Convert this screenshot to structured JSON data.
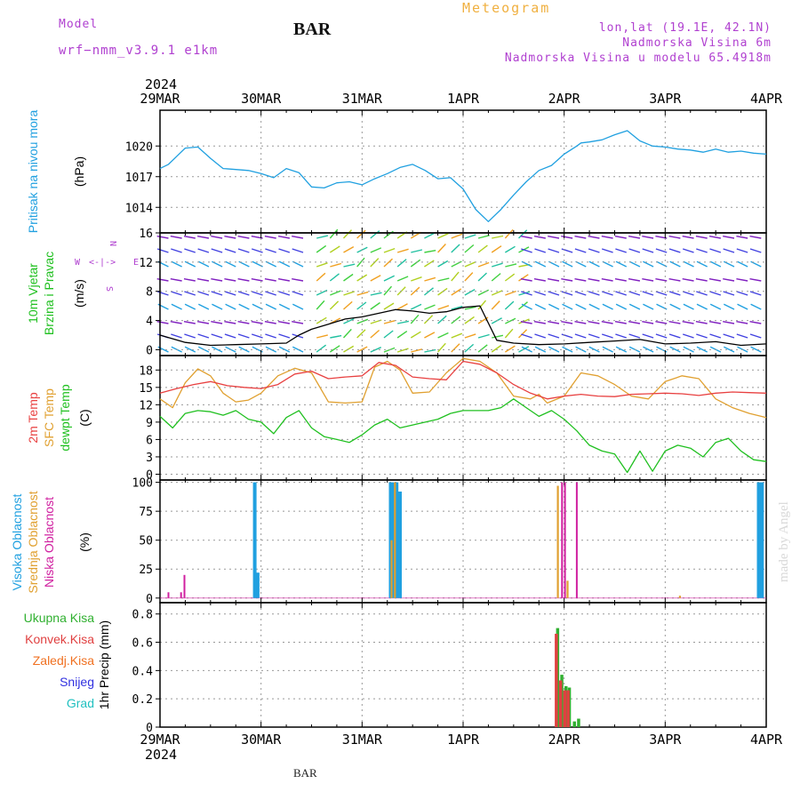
{
  "header": {
    "model_label": "Model",
    "model_name": "wrf−nmm_v3.9.1  e1km",
    "station": "BAR",
    "meteogram": "Meteogram",
    "lonlat": "lon,lat (19.1E, 42.1N)",
    "elevation": "Nadmorska Visina 6m",
    "model_elevation": "Nadmorska Visina u modelu 65.4918m"
  },
  "footer": {
    "station": "BAR",
    "credit": "made by Angel"
  },
  "colors": {
    "pressure": "#20a0e0",
    "temp2m": "#e84040",
    "sfc": "#e0a030",
    "dew": "#20c020",
    "high_cloud": "#20a0e0",
    "mid_cloud": "#e0a030",
    "low_cloud": "#d020a0",
    "total_precip": "#30b030",
    "conv_precip": "#e04040",
    "frozen_precip": "#f07020",
    "snow": "#3030e0",
    "hail": "#20c0c0",
    "grid": "#999999"
  },
  "chart_data": [
    {
      "type": "line",
      "panel": "pressure",
      "ylabel": [
        "Pritisak na nivou mora",
        "(hPa)"
      ],
      "ylim": [
        1011.5,
        1023.5
      ],
      "yticks": [
        1014,
        1017,
        1020
      ],
      "xlim": [
        0,
        144
      ],
      "xticks": [
        "29MAR",
        "30MAR",
        "31MAR",
        "1APR",
        "2APR",
        "3APR",
        "4APR"
      ],
      "year": "2024",
      "grid": true,
      "series": [
        {
          "x": [
            0,
            2,
            4,
            6,
            9,
            12,
            15,
            18,
            21,
            24,
            27,
            30,
            33,
            36,
            39,
            42,
            45,
            48,
            51,
            54,
            57,
            60,
            63,
            66,
            69,
            72,
            75,
            78,
            81,
            84,
            87,
            90,
            93,
            96,
            99,
            100,
            102,
            105,
            108,
            111,
            114,
            117,
            120,
            123,
            126,
            129,
            132,
            135,
            138,
            141,
            144
          ],
          "values": [
            1017.8,
            1018.2,
            1019.0,
            1019.8,
            1019.9,
            1018.8,
            1017.8,
            1017.7,
            1017.6,
            1017.3,
            1016.9,
            1017.8,
            1017.4,
            1016.0,
            1015.9,
            1016.4,
            1016.5,
            1016.2,
            1016.8,
            1017.3,
            1017.9,
            1018.2,
            1017.6,
            1016.8,
            1016.9,
            1015.8,
            1013.8,
            1012.6,
            1013.8,
            1015.2,
            1016.5,
            1017.6,
            1018.1,
            1019.2,
            1020.0,
            1020.3,
            1020.4,
            1020.6,
            1021.1,
            1021.5,
            1020.5,
            1020.0,
            1019.9,
            1019.7,
            1019.6,
            1019.4,
            1019.7,
            1019.4,
            1019.5,
            1019.3,
            1019.2
          ]
        }
      ]
    },
    {
      "type": "line",
      "panel": "wind",
      "ylabel": [
        "10m Vjetar",
        "Brzina i Pravac",
        "(m/s)"
      ],
      "compass": [
        "N",
        "E",
        "S",
        "W"
      ],
      "ylim": [
        -0.8,
        16
      ],
      "yticks": [
        0,
        4,
        8,
        12,
        16
      ],
      "xlim": [
        0,
        144
      ],
      "grid": true,
      "series": [
        {
          "name": "speed",
          "x": [
            0,
            6,
            12,
            18,
            24,
            30,
            33,
            36,
            40,
            44,
            48,
            52,
            56,
            60,
            64,
            68,
            72,
            76,
            80,
            84,
            90,
            96,
            102,
            108,
            114,
            120,
            126,
            132,
            138,
            144
          ],
          "values": [
            2.0,
            1.0,
            0.6,
            0.7,
            0.8,
            0.9,
            2.0,
            2.8,
            3.5,
            4.2,
            4.5,
            5.0,
            5.5,
            5.3,
            5.0,
            5.2,
            5.8,
            6.0,
            1.3,
            0.9,
            0.7,
            0.8,
            1.0,
            1.2,
            1.4,
            0.8,
            0.9,
            1.1,
            0.6,
            0.8
          ]
        }
      ]
    },
    {
      "type": "line",
      "panel": "temperature",
      "ylabel": [
        "2m Temp",
        "SFC Temp",
        "dewpt Temp",
        "(C)"
      ],
      "ylim": [
        -1,
        20.5
      ],
      "yticks": [
        0,
        3,
        6,
        9,
        12,
        15,
        18
      ],
      "xlim": [
        0,
        144
      ],
      "grid": true,
      "series": [
        {
          "name": "2m Temp",
          "x": [
            0,
            4,
            8,
            12,
            16,
            20,
            24,
            28,
            32,
            36,
            40,
            44,
            48,
            52,
            56,
            60,
            64,
            68,
            72,
            76,
            80,
            84,
            88,
            92,
            96,
            100,
            104,
            108,
            112,
            116,
            120,
            124,
            128,
            132,
            136,
            140,
            144
          ],
          "values": [
            14.0,
            14.8,
            15.5,
            16.0,
            15.3,
            15.0,
            14.8,
            15.5,
            17.3,
            17.8,
            16.5,
            16.8,
            17.0,
            19.3,
            18.8,
            16.8,
            16.5,
            16.3,
            19.5,
            19.0,
            17.5,
            15.5,
            14.0,
            13.0,
            13.5,
            13.8,
            13.5,
            13.4,
            13.8,
            13.9,
            14.0,
            13.9,
            13.6,
            14.0,
            14.2,
            14.1,
            14.0
          ]
        },
        {
          "name": "SFC Temp",
          "x": [
            0,
            3,
            6,
            9,
            12,
            15,
            18,
            21,
            24,
            28,
            32,
            36,
            40,
            44,
            48,
            51,
            54,
            57,
            60,
            64,
            68,
            72,
            76,
            80,
            84,
            88,
            90,
            92,
            96,
            100,
            104,
            108,
            112,
            116,
            120,
            124,
            128,
            132,
            136,
            140,
            144
          ],
          "values": [
            13.0,
            11.5,
            15.8,
            18.2,
            17.0,
            14.0,
            12.5,
            12.8,
            14.0,
            17.0,
            18.3,
            17.5,
            12.5,
            12.3,
            12.5,
            18.5,
            19.5,
            18.0,
            14.0,
            14.2,
            17.5,
            20.0,
            19.5,
            17.5,
            13.5,
            13.0,
            13.8,
            12.3,
            13.5,
            17.5,
            17.0,
            15.5,
            13.5,
            13.0,
            16.0,
            17.0,
            16.5,
            13.0,
            11.5,
            10.5,
            9.8
          ]
        },
        {
          "name": "dewpt Temp",
          "x": [
            0,
            3,
            6,
            9,
            12,
            15,
            18,
            21,
            24,
            27,
            30,
            33,
            36,
            39,
            42,
            45,
            48,
            51,
            54,
            57,
            60,
            63,
            66,
            69,
            72,
            75,
            78,
            81,
            84,
            87,
            90,
            93,
            96,
            99,
            102,
            105,
            108,
            111,
            114,
            117,
            120,
            123,
            126,
            129,
            132,
            135,
            138,
            141,
            144
          ],
          "values": [
            10.0,
            8.0,
            10.5,
            11.0,
            10.8,
            10.2,
            11.0,
            9.5,
            9.0,
            7.0,
            9.8,
            11.0,
            8.0,
            6.5,
            6.0,
            5.5,
            6.8,
            8.5,
            9.5,
            8.0,
            8.5,
            9.0,
            9.5,
            10.5,
            11.0,
            11.0,
            11.0,
            11.5,
            13.0,
            11.5,
            10.0,
            11.0,
            9.5,
            7.5,
            5.0,
            4.0,
            3.5,
            0.3,
            4.0,
            0.5,
            4.0,
            5.0,
            4.5,
            3.0,
            5.5,
            6.2,
            4.0,
            2.5,
            2.2
          ]
        }
      ]
    },
    {
      "type": "bar",
      "panel": "cloud",
      "ylabel": [
        "Visoka Oblacnost",
        "Srednja Oblacnost",
        "Niska Oblacnost",
        "(%)"
      ],
      "ylim": [
        -4,
        102
      ],
      "yticks": [
        0,
        25,
        50,
        75,
        100
      ],
      "xlim": [
        0,
        144
      ],
      "grid": true,
      "series": [
        {
          "name": "Visoka Oblacnost",
          "x": [
            22.5,
            23.2,
            54.8,
            55.5,
            56.2,
            57.0,
            142.2,
            143.0
          ],
          "values": [
            100,
            22,
            100,
            100,
            100,
            92,
            100,
            100
          ]
        },
        {
          "name": "Srednja Oblacnost",
          "x": [
            55.0,
            55.8,
            94.5,
            96.8,
            123.5
          ],
          "values": [
            50,
            100,
            97,
            15,
            2
          ]
        },
        {
          "name": "Niska Oblacnost",
          "x": [
            2.0,
            5.0,
            5.8,
            95.5,
            96.2,
            99.0
          ],
          "values": [
            5,
            5,
            20,
            100,
            100,
            100
          ]
        }
      ]
    },
    {
      "type": "bar",
      "panel": "precip",
      "ylabel": [
        "1hr Precip (mm)"
      ],
      "legend": [
        "Ukupna Kisa",
        "Konvek.Kisa",
        "Zaledj.Kisa",
        "Snijeg",
        "Grad"
      ],
      "ylim": [
        0,
        0.88
      ],
      "yticks": [
        0,
        0.2,
        0.4,
        0.6,
        0.8
      ],
      "xlim": [
        0,
        144
      ],
      "xticks": [
        "29MAR",
        "30MAR",
        "31MAR",
        "1APR",
        "2APR",
        "3APR",
        "4APR"
      ],
      "year": "2024",
      "grid": true,
      "series": [
        {
          "name": "Ukupna Kisa",
          "x": [
            94.5,
            95.5,
            96.5,
            97.3,
            98.5,
            99.5
          ],
          "values": [
            0.7,
            0.37,
            0.29,
            0.28,
            0.04,
            0.06
          ]
        },
        {
          "name": "Konvek.Kisa",
          "x": [
            94.2,
            95.2,
            96.2,
            97.0
          ],
          "values": [
            0.66,
            0.33,
            0.26,
            0.26
          ]
        }
      ]
    }
  ]
}
